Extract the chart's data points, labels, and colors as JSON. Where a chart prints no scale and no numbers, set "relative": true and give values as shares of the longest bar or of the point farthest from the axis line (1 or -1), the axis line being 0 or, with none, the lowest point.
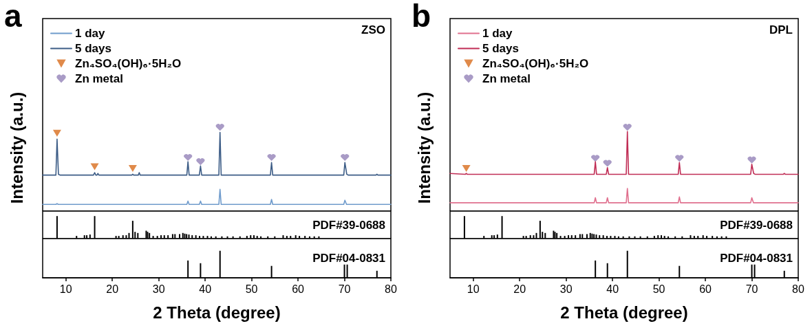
{
  "chart_data": [
    {
      "type": "line",
      "title": "a",
      "ylabel": "Intensity (a.u.)",
      "relative": true,
      "xlim": [
        5,
        80
      ],
      "tick_labels": false,
      "legend": "top left",
      "annotations": [
        "ZSO"
      ],
      "series": [
        {
          "name": "1 day",
          "color": "#6f9bcc",
          "x": [
            5,
            7.85,
            8.1,
            8.35,
            36.05,
            36.3,
            36.55,
            38.75,
            39.0,
            39.25,
            42.95,
            43.2,
            43.45,
            54.05,
            54.3,
            54.55,
            69.85,
            70.1,
            70.45,
            80
          ],
          "values": [
            0.08,
            0.08,
            0.09,
            0.08,
            0.08,
            0.12,
            0.08,
            0.08,
            0.12,
            0.08,
            0.08,
            0.26,
            0.08,
            0.08,
            0.14,
            0.08,
            0.08,
            0.13,
            0.08,
            0.08
          ]
        },
        {
          "name": "5 days",
          "color": "#3c5c86",
          "x": [
            5,
            7.85,
            8.1,
            8.4,
            8.8,
            15.95,
            16.2,
            16.45,
            16.7,
            16.9,
            17.1,
            24.2,
            24.4,
            24.6,
            25.6,
            25.8,
            26,
            36.05,
            36.3,
            36.55,
            38.75,
            39.0,
            39.25,
            42.95,
            43.2,
            43.45,
            54.05,
            54.3,
            54.55,
            69.85,
            70.1,
            70.5,
            70.8,
            76.8,
            77,
            77.2,
            80
          ],
          "values": [
            0.43,
            0.43,
            0.86,
            0.44,
            0.43,
            0.43,
            0.46,
            0.43,
            0.43,
            0.45,
            0.43,
            0.43,
            0.44,
            0.43,
            0.43,
            0.46,
            0.43,
            0.43,
            0.59,
            0.43,
            0.43,
            0.54,
            0.43,
            0.43,
            0.94,
            0.43,
            0.43,
            0.58,
            0.43,
            0.43,
            0.58,
            0.44,
            0.43,
            0.43,
            0.44,
            0.43,
            0.43
          ]
        },
        {
          "type": "scatter",
          "name": "Zn₄SO₄(OH)₆·5H₂O",
          "color": "#e08a4a",
          "marker": "triangle",
          "x": [
            8.1,
            16.2,
            24.4
          ],
          "values": [
            0.93,
            0.53,
            0.51
          ]
        },
        {
          "type": "scatter",
          "name": "Zn metal",
          "color": "#a99bc6",
          "x": [
            36.3,
            39.0,
            43.2,
            54.3,
            70.1
          ],
          "values": [
            0.64,
            0.59,
            1,
            0.64,
            0.64
          ]
        }
      ]
    },
    {
      "type": "bar",
      "relative": true,
      "xlim": [
        5,
        80
      ],
      "tick_labels": false,
      "color": "#000000",
      "annotations": [
        "PDF#39-0688"
      ],
      "x": [
        8.1,
        12.3,
        14.0,
        14.5,
        15.2,
        16.2,
        20.8,
        21.4,
        22.3,
        23.0,
        23.6,
        24.4,
        24.9,
        25.5,
        27.3,
        27.6,
        28.0,
        28.8,
        29.7,
        30.5,
        31.2,
        32.0,
        33.0,
        33.5,
        34.5,
        35.2,
        35.6,
        36.0,
        36.5,
        37.2,
        38.0,
        38.8,
        39.6,
        40.5,
        41.3,
        42.3,
        43.6,
        44.8,
        46.0,
        47.5,
        49.0,
        49.8,
        50.5,
        51.2,
        52.0,
        53.5,
        55.0,
        56.8,
        57.6,
        58.4,
        59.5,
        60.3,
        61.5,
        62.5,
        63.5,
        64.5
      ],
      "values": [
        1,
        0.12,
        0.15,
        0.15,
        0.18,
        1,
        0.12,
        0.12,
        0.15,
        0.15,
        0.25,
        0.79,
        0.3,
        0.25,
        0.35,
        0.3,
        0.25,
        0.12,
        0.12,
        0.15,
        0.15,
        0.15,
        0.2,
        0.2,
        0.2,
        0.25,
        0.22,
        0.2,
        0.18,
        0.15,
        0.15,
        0.12,
        0.12,
        0.12,
        0.1,
        0.1,
        0.1,
        0.1,
        0.1,
        0.1,
        0.12,
        0.15,
        0.15,
        0.12,
        0.1,
        0.1,
        0.1,
        0.15,
        0.12,
        0.12,
        0.15,
        0.12,
        0.12,
        0.1,
        0.1,
        0.1
      ]
    },
    {
      "type": "bar",
      "relative": true,
      "xlim": [
        5,
        80
      ],
      "xticks": [
        10,
        20,
        30,
        40,
        50,
        60,
        70,
        80
      ],
      "tick_labels": "x",
      "xlabel": "2 Theta (degree)",
      "color": "#000000",
      "annotations": [
        "PDF#04-0831"
      ],
      "x": [
        36.3,
        39.0,
        43.2,
        54.3,
        70.0,
        70.6,
        77.0
      ],
      "values": [
        0.64,
        0.54,
        1,
        0.44,
        0.49,
        0.49,
        0.26
      ]
    },
    {
      "type": "line",
      "title": "b",
      "ylabel": "Intensity (a.u.)",
      "relative": true,
      "xlim": [
        5,
        80
      ],
      "tick_labels": false,
      "legend": "top left",
      "annotations": [
        "DPL"
      ],
      "series": [
        {
          "name": "1 day",
          "color": "#e0708e",
          "x": [
            5,
            36.05,
            36.3,
            36.55,
            38.65,
            38.9,
            39.15,
            42.95,
            43.2,
            43.45,
            54.15,
            54.4,
            54.65,
            69.75,
            70.0,
            70.35,
            80
          ],
          "values": [
            0.1,
            0.1,
            0.16,
            0.1,
            0.1,
            0.16,
            0.1,
            0.1,
            0.27,
            0.1,
            0.1,
            0.17,
            0.1,
            0.1,
            0.16,
            0.1,
            0.1
          ]
        },
        {
          "name": "5 days",
          "color": "#c02d55",
          "x": [
            5,
            8.3,
            8.5,
            8.7,
            36.05,
            36.3,
            36.55,
            38.65,
            38.9,
            39.15,
            42.95,
            43.2,
            43.45,
            54.15,
            54.4,
            54.65,
            69.75,
            70.0,
            70.4,
            70.7,
            76.8,
            77,
            77.2,
            80
          ],
          "values": [
            0.45,
            0.44,
            0.45,
            0.44,
            0.44,
            0.59,
            0.44,
            0.44,
            0.52,
            0.44,
            0.44,
            0.95,
            0.44,
            0.44,
            0.58,
            0.44,
            0.44,
            0.56,
            0.45,
            0.44,
            0.44,
            0.45,
            0.44,
            0.44
          ]
        },
        {
          "type": "scatter",
          "name": "Zn₄SO₄(OH)₆·5H₂O",
          "color": "#e08a4a",
          "marker": "triangle",
          "x": [
            8.5
          ],
          "values": [
            0.51
          ]
        },
        {
          "type": "scatter",
          "name": "Zn metal",
          "color": "#a99bc6",
          "x": [
            36.3,
            38.9,
            43.2,
            54.4,
            70.0
          ],
          "values": [
            0.63,
            0.57,
            1,
            0.63,
            0.61
          ]
        }
      ]
    },
    {
      "type": "bar",
      "relative": true,
      "xlim": [
        5,
        80
      ],
      "tick_labels": false,
      "color": "#000000",
      "annotations": [
        "PDF#39-0688"
      ],
      "x": [
        8.1,
        12.3,
        14.0,
        14.5,
        15.2,
        16.2,
        20.8,
        21.4,
        22.3,
        23.0,
        23.6,
        24.4,
        24.9,
        25.5,
        27.3,
        27.6,
        28.0,
        28.8,
        29.7,
        30.5,
        31.2,
        32.0,
        33.0,
        33.5,
        34.5,
        35.2,
        35.6,
        36.0,
        36.5,
        37.2,
        38.0,
        38.8,
        39.6,
        40.5,
        41.3,
        42.3,
        43.6,
        44.8,
        46.0,
        47.5,
        49.0,
        49.8,
        50.5,
        51.2,
        52.0,
        53.5,
        55.0,
        56.8,
        57.6,
        58.4,
        59.5,
        60.3,
        61.5,
        62.5,
        63.5,
        64.5
      ],
      "values": [
        1,
        0.12,
        0.15,
        0.15,
        0.18,
        1,
        0.12,
        0.12,
        0.15,
        0.15,
        0.25,
        0.79,
        0.3,
        0.25,
        0.35,
        0.3,
        0.25,
        0.12,
        0.12,
        0.15,
        0.15,
        0.15,
        0.2,
        0.2,
        0.2,
        0.25,
        0.22,
        0.2,
        0.18,
        0.15,
        0.15,
        0.12,
        0.12,
        0.12,
        0.1,
        0.1,
        0.1,
        0.1,
        0.1,
        0.1,
        0.12,
        0.15,
        0.15,
        0.12,
        0.1,
        0.1,
        0.1,
        0.15,
        0.12,
        0.12,
        0.15,
        0.12,
        0.12,
        0.1,
        0.1,
        0.1
      ]
    },
    {
      "type": "bar",
      "relative": true,
      "xlim": [
        5,
        80
      ],
      "xticks": [
        10,
        20,
        30,
        40,
        50,
        60,
        70,
        80
      ],
      "tick_labels": "x",
      "xlabel": "2 Theta (degree)",
      "color": "#000000",
      "annotations": [
        "PDF#04-0831"
      ],
      "x": [
        36.3,
        38.9,
        43.2,
        54.4,
        70.0,
        70.6,
        77.0
      ],
      "values": [
        0.64,
        0.54,
        1,
        0.44,
        0.49,
        0.49,
        0.26
      ]
    }
  ]
}
